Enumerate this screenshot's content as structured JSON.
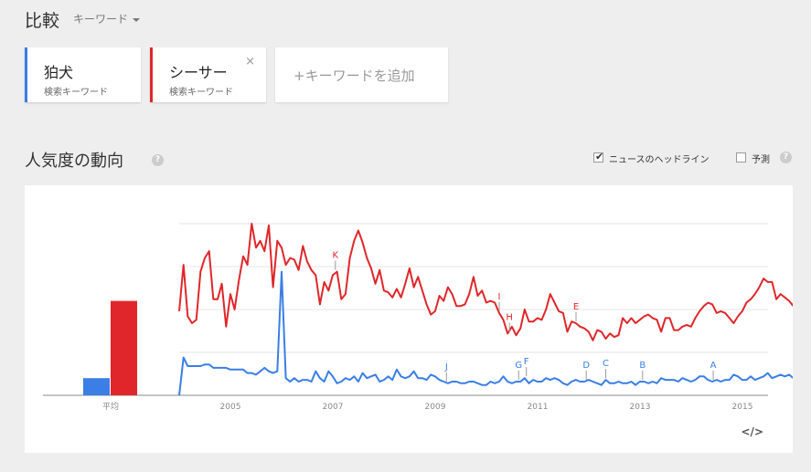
{
  "header": {
    "title": "比較",
    "mode": "キーワード"
  },
  "terms": [
    {
      "name": "狛犬",
      "sub": "検索キーワード",
      "color": "#3a7ee6"
    },
    {
      "name": "シーサー",
      "sub": "検索キーワード",
      "color": "#e0262a",
      "close": "×"
    }
  ],
  "add_label": "+キーワードを追加",
  "section": {
    "title": "人気度の動向",
    "help": "?"
  },
  "options": {
    "news_label": "ニュースのヘッドライン",
    "news_checked": true,
    "forecast_label": "予測",
    "forecast_checked": false
  },
  "embed_label": "</>",
  "chart_data": {
    "type": "line",
    "avg_label": "平均",
    "averages": [
      {
        "name": "狛犬",
        "value": 10
      },
      {
        "name": "シーサー",
        "value": 55
      }
    ],
    "x_range": [
      2004,
      2015.5
    ],
    "x_ticks": [
      "2005",
      "2007",
      "2009",
      "2011",
      "2013",
      "2015"
    ],
    "ylim": [
      0,
      100
    ],
    "series": [
      {
        "color": "#e0262a",
        "start": 2004.0,
        "step": 0.0833,
        "values": [
          49,
          76,
          46,
          42,
          44,
          72,
          80,
          84,
          56,
          56,
          65,
          40,
          59,
          50,
          67,
          81,
          76,
          100,
          86,
          90,
          84,
          99,
          63,
          90,
          86,
          76,
          80,
          79,
          73,
          87,
          78,
          73,
          70,
          53,
          66,
          61,
          70,
          72,
          56,
          59,
          80,
          90,
          96,
          89,
          80,
          74,
          65,
          73,
          61,
          60,
          57,
          62,
          57,
          65,
          74,
          63,
          69,
          61,
          53,
          47,
          49,
          58,
          55,
          63,
          59,
          52,
          52,
          53,
          59,
          69,
          58,
          61,
          54,
          55,
          54,
          48,
          44,
          36,
          40,
          35,
          39,
          50,
          43,
          43,
          45,
          44,
          50,
          59,
          54,
          49,
          48,
          37,
          43,
          42,
          40,
          39,
          37,
          32,
          38,
          37,
          33,
          36,
          34,
          35,
          45,
          42,
          45,
          42,
          44,
          46,
          47,
          45,
          44,
          37,
          45,
          45,
          38,
          38,
          40,
          41,
          40,
          45,
          49,
          52,
          54,
          53,
          48,
          49,
          48,
          45,
          42,
          46,
          49,
          54,
          56,
          59,
          63,
          68,
          66,
          66,
          56,
          59,
          57,
          55,
          52,
          55,
          57,
          60,
          59,
          56,
          58,
          61,
          56,
          46,
          42,
          43,
          44,
          45,
          49,
          49,
          51,
          54,
          57
        ]
      },
      {
        "color": "#3a7ee6",
        "start": 2004.0,
        "step": 0.0833,
        "values": [
          0,
          22,
          17,
          17,
          17,
          17,
          18,
          18,
          16,
          16,
          16,
          16,
          15,
          15,
          15,
          15,
          13,
          13,
          12,
          14,
          16,
          14,
          13,
          14,
          72,
          10,
          8,
          10,
          8,
          9,
          9,
          8,
          14,
          10,
          8,
          14,
          11,
          7,
          8,
          10,
          9,
          11,
          8,
          13,
          10,
          11,
          12,
          8,
          9,
          11,
          9,
          15,
          11,
          10,
          11,
          14,
          10,
          10,
          9,
          12,
          11,
          9,
          8,
          7,
          8,
          8,
          7,
          7,
          8,
          8,
          7,
          6,
          6,
          8,
          7,
          8,
          11,
          8,
          7,
          8,
          8,
          10,
          7,
          9,
          8,
          8,
          10,
          9,
          10,
          9,
          7,
          6,
          8,
          9,
          8,
          8,
          9,
          8,
          7,
          6,
          9,
          7,
          7,
          8,
          7,
          7,
          8,
          6,
          8,
          8,
          7,
          8,
          7,
          10,
          9,
          9,
          9,
          8,
          10,
          9,
          8,
          9,
          11,
          11,
          9,
          8,
          9,
          8,
          9,
          9,
          12,
          11,
          9,
          9,
          11,
          9,
          10,
          11,
          13,
          10,
          11,
          12,
          11,
          12,
          10,
          13,
          11,
          10,
          12,
          14,
          12,
          10,
          11,
          10,
          13,
          11,
          11,
          12,
          10,
          10,
          9,
          10,
          10,
          12,
          11
        ]
      }
    ],
    "annotations": [
      {
        "label": "K",
        "x": 2007.05,
        "series": 0
      },
      {
        "label": "I",
        "x": 2010.25,
        "series": 0
      },
      {
        "label": "H",
        "x": 2010.45,
        "series": 0
      },
      {
        "label": "E",
        "x": 2011.75,
        "series": 0
      },
      {
        "label": "J",
        "x": 2009.22,
        "series": 1
      },
      {
        "label": "G",
        "x": 2010.63,
        "series": 1
      },
      {
        "label": "F",
        "x": 2010.78,
        "series": 1
      },
      {
        "label": "D",
        "x": 2011.95,
        "series": 1
      },
      {
        "label": "C",
        "x": 2012.33,
        "series": 1
      },
      {
        "label": "B",
        "x": 2013.05,
        "series": 1
      },
      {
        "label": "A",
        "x": 2014.43,
        "series": 1
      }
    ]
  }
}
